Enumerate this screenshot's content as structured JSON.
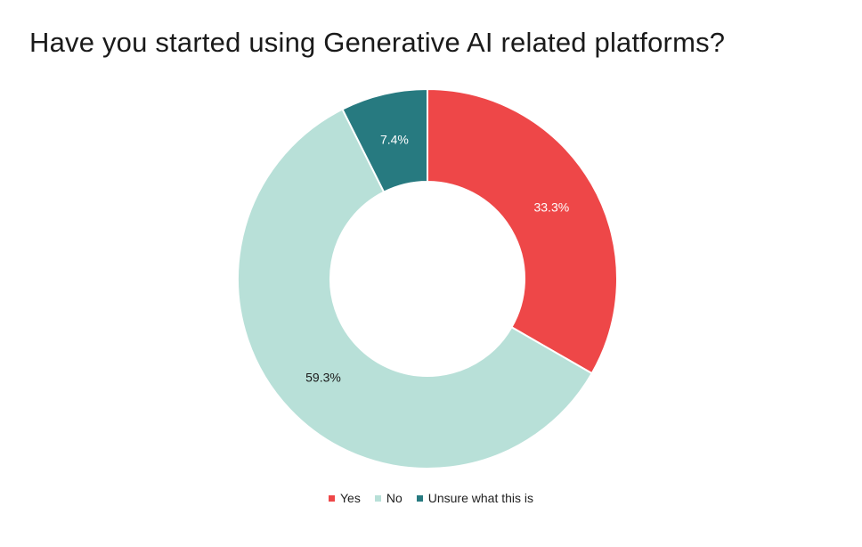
{
  "chart_data": {
    "type": "pie",
    "donut": true,
    "title": "Have you started using Generative AI related platforms?",
    "categories": [
      "Yes",
      "No",
      "Unsure what this is"
    ],
    "values": [
      33.3,
      59.3,
      7.4
    ],
    "data_labels": [
      "33.3%",
      "59.3%",
      "7.4%"
    ],
    "colors": [
      "#EE4748",
      "#B8E0D8",
      "#277A80"
    ],
    "label_colors": [
      "#ffffff",
      "#1a1a1a",
      "#ffffff"
    ],
    "legend_position": "bottom"
  }
}
